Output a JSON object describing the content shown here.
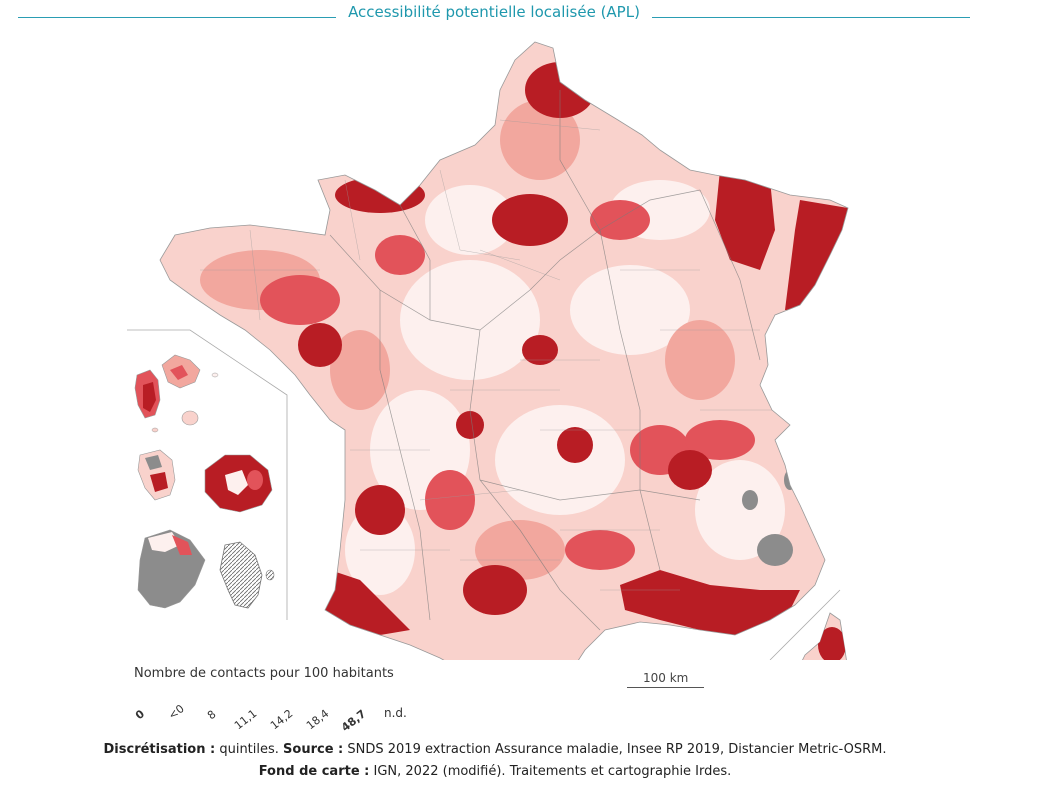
{
  "title": "Accessibilité potentielle localisée (APL)",
  "legend": {
    "title": "Nombre de contacts pour 100 habitants",
    "classes": [
      {
        "color": "#8c8c8c"
      },
      {
        "color": "#fdf0ee"
      },
      {
        "color": "#f9d2cc"
      },
      {
        "color": "#f2a79e"
      },
      {
        "color": "#e2535a"
      },
      {
        "color": "#b81d24"
      }
    ],
    "tick_labels": [
      "0",
      "<0",
      "8",
      "11,1",
      "14,2",
      "18,4",
      "48,7"
    ],
    "na_label": "n.d."
  },
  "scale": {
    "label": "100 km"
  },
  "footer": {
    "line1_label1": "Discrétisation :",
    "line1_text1": " quintiles. ",
    "line1_label2": "Source :",
    "line1_text2": " SNDS 2019 extraction Assurance maladie, Insee RP 2019, Distancier Metric-OSRM.",
    "line2_label": "Fond de carte :",
    "line2_text": " IGN, 2022 (modifié). Traitements et cartographie Irdes."
  },
  "colors": {
    "title": "#1f98ad",
    "no_data": "#8c8c8c",
    "q1": "#fdf0ee",
    "q2": "#f9d2cc",
    "q3": "#f2a79e",
    "q4": "#e2535a",
    "q5": "#b81d24"
  }
}
